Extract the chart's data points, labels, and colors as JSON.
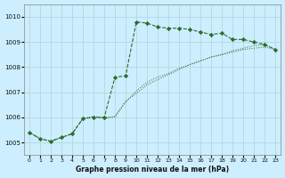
{
  "title": "Graphe pression niveau de la mer (hPa)",
  "bg_color": "#cceeff",
  "grid_color": "#b0d4d4",
  "line_color": "#2d6b2d",
  "xlim": [
    -0.5,
    23.5
  ],
  "ylim": [
    1004.5,
    1010.5
  ],
  "yticks": [
    1005,
    1006,
    1007,
    1008,
    1009,
    1010
  ],
  "xticks": [
    0,
    1,
    2,
    3,
    4,
    5,
    6,
    7,
    8,
    9,
    10,
    11,
    12,
    13,
    14,
    15,
    16,
    17,
    18,
    19,
    20,
    21,
    22,
    23
  ],
  "line1_x": [
    0,
    1,
    2,
    3,
    4,
    5,
    6,
    7,
    8,
    9,
    10,
    11,
    12,
    13,
    14,
    15,
    16,
    17,
    18,
    19,
    20,
    21,
    22,
    23
  ],
  "line1_y": [
    1005.4,
    1005.15,
    1005.05,
    1005.2,
    1005.35,
    1005.95,
    1006.0,
    1006.0,
    1007.6,
    1007.65,
    1009.8,
    1009.75,
    1009.6,
    1009.55,
    1009.55,
    1009.5,
    1009.4,
    1009.3,
    1009.35,
    1009.1,
    1009.1,
    1009.0,
    1008.9,
    1008.7
  ],
  "line2_x": [
    0,
    1,
    2,
    3,
    4,
    5,
    6,
    7,
    8,
    9,
    10,
    11,
    12,
    13,
    14,
    15,
    16,
    17,
    18,
    19,
    20,
    21,
    22,
    23
  ],
  "line2_y": [
    1005.4,
    1005.15,
    1005.05,
    1005.2,
    1005.35,
    1005.95,
    1006.05,
    1005.95,
    1006.05,
    1006.6,
    1007.05,
    1007.4,
    1007.6,
    1007.75,
    1007.95,
    1008.1,
    1008.25,
    1008.4,
    1008.5,
    1008.6,
    1008.7,
    1008.75,
    1008.8,
    1008.7
  ],
  "line3_x": [
    0,
    1,
    2,
    3,
    4,
    5,
    6,
    7,
    8,
    9,
    10,
    11,
    12,
    13,
    14,
    15,
    16,
    17,
    18,
    19,
    20,
    21,
    22,
    23
  ],
  "line3_y": [
    1005.4,
    1005.15,
    1005.05,
    1005.2,
    1005.35,
    1005.95,
    1006.0,
    1006.0,
    1006.0,
    1006.65,
    1006.95,
    1007.3,
    1007.5,
    1007.7,
    1007.9,
    1008.1,
    1008.25,
    1008.4,
    1008.5,
    1008.65,
    1008.75,
    1008.85,
    1008.9,
    1008.7
  ]
}
